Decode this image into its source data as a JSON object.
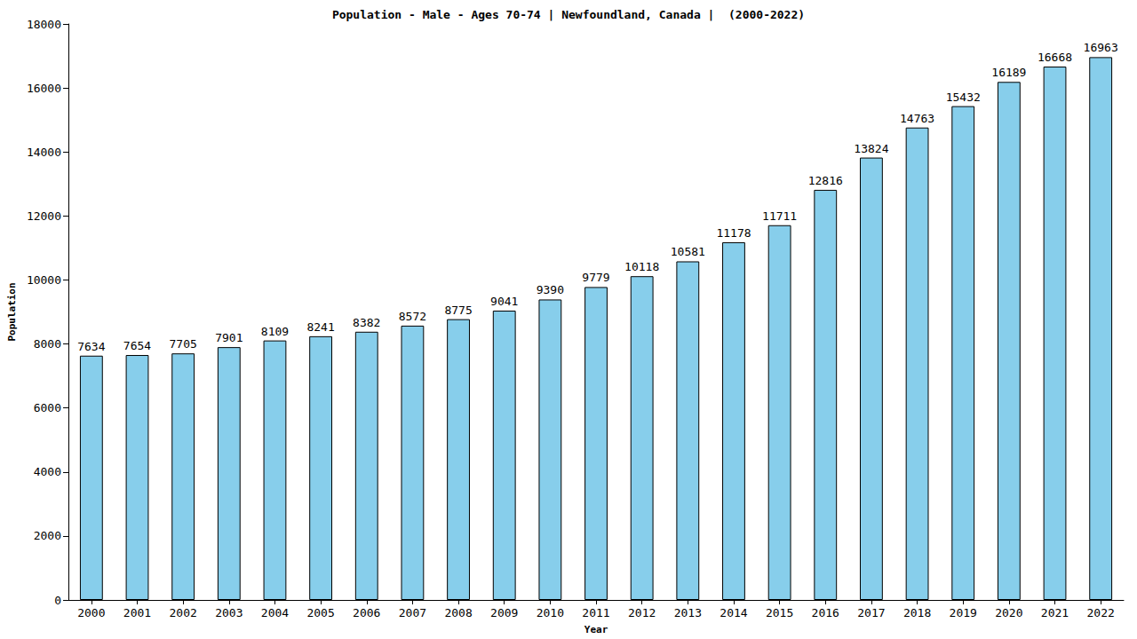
{
  "chart_data": {
    "type": "bar",
    "title": "Population - Male - Ages 70-74 | Newfoundland, Canada |  (2000-2022)",
    "x_label": "Year",
    "y_label": "Population",
    "categories": [
      "2000",
      "2001",
      "2002",
      "2003",
      "2004",
      "2005",
      "2006",
      "2007",
      "2008",
      "2009",
      "2010",
      "2011",
      "2012",
      "2013",
      "2014",
      "2015",
      "2016",
      "2017",
      "2018",
      "2019",
      "2020",
      "2021",
      "2022"
    ],
    "values": [
      7634,
      7654,
      7705,
      7901,
      8109,
      8241,
      8382,
      8572,
      8775,
      9041,
      9390,
      9779,
      10118,
      10581,
      11178,
      11711,
      12816,
      13824,
      14763,
      15432,
      16189,
      16668,
      16963
    ],
    "color": "#87ceeb",
    "ylim": [
      0,
      18000
    ],
    "yticks": [
      0,
      2000,
      4000,
      6000,
      8000,
      10000,
      12000,
      14000,
      16000,
      18000
    ],
    "grid": false,
    "data_labels": true
  }
}
